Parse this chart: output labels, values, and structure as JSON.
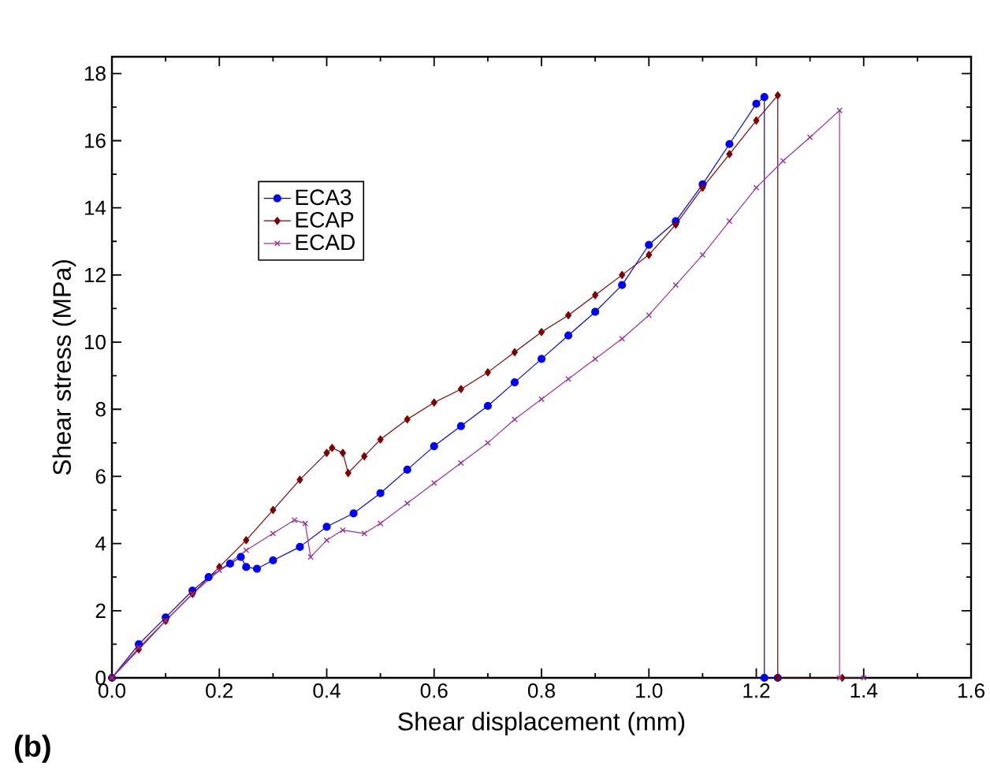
{
  "chart_data": {
    "type": "line",
    "xlabel": "Shear displacement (mm)",
    "ylabel": "Shear stress (MPa)",
    "xlim": [
      0,
      1.6
    ],
    "ylim": [
      0,
      18.5
    ],
    "xticks": [
      {
        "value": 0,
        "label": "0.0"
      },
      0.2,
      0.4,
      0.6,
      0.8,
      {
        "value": 1,
        "label": "1.0"
      },
      1.2,
      1.4,
      1.6
    ],
    "yticks": [
      0,
      2,
      4,
      6,
      8,
      10,
      12,
      14,
      16,
      18
    ],
    "legend": "top left",
    "grid": false,
    "line_style": "solid",
    "annotations": [
      "(b)"
    ],
    "series": [
      {
        "name": "ECA3",
        "color": "#0000ff",
        "marker": "circle",
        "x": [
          0,
          0.05,
          0.1,
          0.15,
          0.18,
          0.22,
          0.24,
          0.25,
          0.27,
          0.3,
          0.35,
          0.4,
          0.45,
          0.5,
          0.55,
          0.6,
          0.65,
          0.7,
          0.75,
          0.8,
          0.85,
          0.9,
          0.95,
          1.0,
          1.05,
          1.1,
          1.15,
          1.2,
          1.215,
          1.215,
          1.24
        ],
        "values": [
          0,
          1.0,
          1.8,
          2.6,
          3.0,
          3.4,
          3.6,
          3.3,
          3.25,
          3.5,
          3.9,
          4.5,
          4.9,
          5.5,
          6.2,
          6.9,
          7.5,
          8.1,
          8.8,
          9.5,
          10.2,
          10.9,
          11.7,
          12.9,
          13.6,
          14.7,
          15.9,
          17.1,
          17.3,
          0,
          0
        ]
      },
      {
        "name": "ECAP",
        "color": "#800000",
        "marker": "diamond",
        "x": [
          0,
          0.05,
          0.1,
          0.15,
          0.2,
          0.25,
          0.3,
          0.35,
          0.4,
          0.41,
          0.43,
          0.44,
          0.47,
          0.5,
          0.55,
          0.6,
          0.65,
          0.7,
          0.75,
          0.8,
          0.85,
          0.9,
          0.95,
          1.0,
          1.05,
          1.1,
          1.15,
          1.2,
          1.24,
          1.24,
          1.36
        ],
        "values": [
          0,
          0.85,
          1.7,
          2.5,
          3.3,
          4.1,
          5.0,
          5.9,
          6.7,
          6.85,
          6.7,
          6.1,
          6.6,
          7.1,
          7.7,
          8.2,
          8.6,
          9.1,
          9.7,
          10.3,
          10.8,
          11.4,
          12.0,
          12.6,
          13.5,
          14.6,
          15.6,
          16.6,
          17.35,
          0,
          0
        ]
      },
      {
        "name": "ECAD",
        "color": "#993399",
        "marker": "cross",
        "x": [
          0,
          0.05,
          0.1,
          0.15,
          0.2,
          0.25,
          0.3,
          0.34,
          0.36,
          0.37,
          0.4,
          0.43,
          0.47,
          0.5,
          0.55,
          0.6,
          0.65,
          0.7,
          0.75,
          0.8,
          0.85,
          0.9,
          0.95,
          1.0,
          1.05,
          1.1,
          1.15,
          1.2,
          1.25,
          1.3,
          1.355,
          1.355,
          1.4
        ],
        "values": [
          0,
          0.9,
          1.7,
          2.5,
          3.2,
          3.8,
          4.3,
          4.7,
          4.6,
          3.6,
          4.1,
          4.4,
          4.3,
          4.6,
          5.2,
          5.8,
          6.4,
          7.0,
          7.7,
          8.3,
          8.9,
          9.5,
          10.1,
          10.8,
          11.7,
          12.6,
          13.6,
          14.6,
          15.4,
          16.1,
          16.9,
          0,
          0
        ]
      }
    ]
  }
}
